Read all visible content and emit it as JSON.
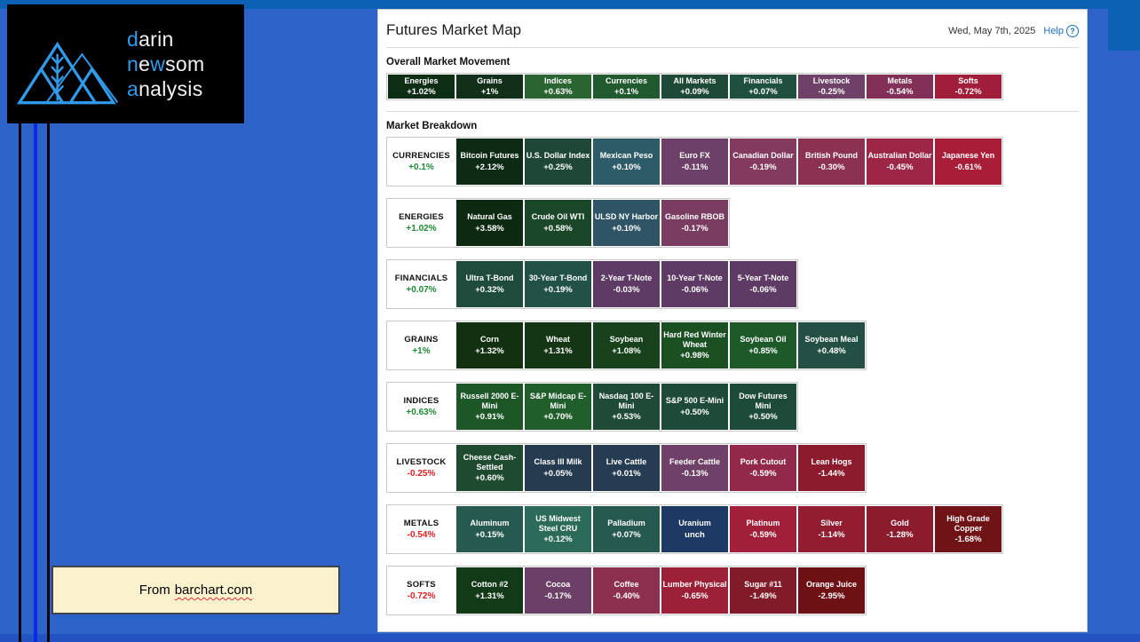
{
  "colors": {
    "background": "#2e63ca",
    "window_edge": "#0d61b4",
    "logo_accent_blue": "#2f9bea",
    "annotation_blue": "#0b2beb",
    "positive_green": "#1d8a34",
    "negative_red": "#e01f1f",
    "help_link_blue": "#1b6ec2",
    "attribution_bg": "#fcf1cd"
  },
  "logo": {
    "lines": [
      [
        {
          "text": "d",
          "blue": true
        },
        {
          "text": "arin",
          "blue": false
        }
      ],
      [
        {
          "text": "n",
          "blue": true
        },
        {
          "text": "e",
          "blue": false
        },
        {
          "text": "w",
          "blue": true
        },
        {
          "text": "som",
          "blue": false
        }
      ],
      [
        {
          "text": "a",
          "blue": true
        },
        {
          "text": "nalysis",
          "blue": false
        }
      ]
    ]
  },
  "attribution": {
    "prefix": "From",
    "link": "barchart.com"
  },
  "panel": {
    "title": "Futures Market Map",
    "date": "Wed, May 7th, 2025",
    "help_label": "Help",
    "help_icon_glyph": "?",
    "overall": {
      "heading": "Overall Market Movement",
      "tiles": [
        {
          "name": "Energies",
          "value": "+1.02%",
          "color": "#0d2d15"
        },
        {
          "name": "Grains",
          "value": "+1%",
          "color": "#122f1a"
        },
        {
          "name": "Indices",
          "value": "+0.63%",
          "color": "#2a6430"
        },
        {
          "name": "Currencies",
          "value": "+0.1%",
          "color": "#215a2e"
        },
        {
          "name": "All Markets",
          "value": "+0.09%",
          "color": "#1e4936"
        },
        {
          "name": "Financials",
          "value": "+0.07%",
          "color": "#1f4f3e"
        },
        {
          "name": "Livestock",
          "value": "-0.25%",
          "color": "#6f4169"
        },
        {
          "name": "Metals",
          "value": "-0.54%",
          "color": "#823057"
        },
        {
          "name": "Softs",
          "value": "-0.72%",
          "color": "#a01e39"
        }
      ]
    },
    "breakdown": {
      "heading": "Market Breakdown",
      "rows": [
        {
          "label": "CURRENCIES",
          "value": "+0.1%",
          "direction": "up",
          "tiles": [
            {
              "name": "Bitcoin Futures",
              "value": "+2.12%",
              "color": "#0d2b14"
            },
            {
              "name": "U.S. Dollar Index",
              "value": "+0.25%",
              "color": "#1e4738"
            },
            {
              "name": "Mexican Peso",
              "value": "+0.10%",
              "color": "#2e5b68"
            },
            {
              "name": "Euro FX",
              "value": "-0.11%",
              "color": "#6d4068"
            },
            {
              "name": "Canadian Dollar",
              "value": "-0.19%",
              "color": "#843a5e"
            },
            {
              "name": "British Pound",
              "value": "-0.30%",
              "color": "#8d3153"
            },
            {
              "name": "Australian Dollar",
              "value": "-0.45%",
              "color": "#9d2646"
            },
            {
              "name": "Japanese Yen",
              "value": "-0.61%",
              "color": "#a81e38"
            }
          ]
        },
        {
          "label": "ENERGIES",
          "value": "+1.02%",
          "direction": "up",
          "tiles": [
            {
              "name": "Natural Gas",
              "value": "+3.58%",
              "color": "#0c2912"
            },
            {
              "name": "Crude Oil WTI",
              "value": "+0.58%",
              "color": "#1a4727"
            },
            {
              "name": "ULSD NY Harbor",
              "value": "+0.10%",
              "color": "#2e5465"
            },
            {
              "name": "Gasoline RBOB",
              "value": "-0.17%",
              "color": "#7a3c60"
            }
          ]
        },
        {
          "label": "FINANCIALS",
          "value": "+0.07%",
          "direction": "up",
          "tiles": [
            {
              "name": "Ultra T-Bond",
              "value": "+0.32%",
              "color": "#1e4b3c"
            },
            {
              "name": "30-Year T-Bond",
              "value": "+0.19%",
              "color": "#225148"
            },
            {
              "name": "2-Year T-Note",
              "value": "-0.03%",
              "color": "#5e3b64"
            },
            {
              "name": "10-Year T-Note",
              "value": "-0.06%",
              "color": "#5e3b64"
            },
            {
              "name": "5-Year T-Note",
              "value": "-0.06%",
              "color": "#5e3b64"
            }
          ]
        },
        {
          "label": "GRAINS",
          "value": "+1%",
          "direction": "up",
          "tiles": [
            {
              "name": "Corn",
              "value": "+1.32%",
              "color": "#113110"
            },
            {
              "name": "Wheat",
              "value": "+1.31%",
              "color": "#143614"
            },
            {
              "name": "Soybean",
              "value": "+1.08%",
              "color": "#17421c"
            },
            {
              "name": "Hard Red Winter Wheat",
              "value": "+0.98%",
              "color": "#1b5122"
            },
            {
              "name": "Soybean Oil",
              "value": "+0.85%",
              "color": "#1e5a29"
            },
            {
              "name": "Soybean Meal",
              "value": "+0.48%",
              "color": "#234f44"
            }
          ]
        },
        {
          "label": "INDICES",
          "value": "+0.63%",
          "direction": "up",
          "tiles": [
            {
              "name": "Russell 2000 E-Mini",
              "value": "+0.91%",
              "color": "#1d5627"
            },
            {
              "name": "S&P Midcap E-Mini",
              "value": "+0.70%",
              "color": "#205e2c"
            },
            {
              "name": "Nasdaq 100 E-Mini",
              "value": "+0.53%",
              "color": "#1e4a37"
            },
            {
              "name": "S&P 500 E-Mini",
              "value": "+0.50%",
              "color": "#1e4a39"
            },
            {
              "name": "Dow Futures Mini",
              "value": "+0.50%",
              "color": "#1e4a39"
            }
          ]
        },
        {
          "label": "LIVESTOCK",
          "value": "-0.25%",
          "direction": "down",
          "tiles": [
            {
              "name": "Cheese Cash-Settled",
              "value": "+0.60%",
              "color": "#1e4a2f"
            },
            {
              "name": "Class III Milk",
              "value": "+0.05%",
              "color": "#253b50"
            },
            {
              "name": "Live Cattle",
              "value": "+0.01%",
              "color": "#263c52"
            },
            {
              "name": "Feeder Cattle",
              "value": "-0.13%",
              "color": "#6f4169"
            },
            {
              "name": "Pork Cutout",
              "value": "-0.59%",
              "color": "#92294b"
            },
            {
              "name": "Lean Hogs",
              "value": "-1.44%",
              "color": "#8c1b2e"
            }
          ]
        },
        {
          "label": "METALS",
          "value": "-0.54%",
          "direction": "down",
          "tiles": [
            {
              "name": "Aluminum",
              "value": "+0.15%",
              "color": "#265a50"
            },
            {
              "name": "US Midwest Steel CRU",
              "value": "+0.12%",
              "color": "#2c6a5a"
            },
            {
              "name": "Palladium",
              "value": "+0.07%",
              "color": "#265a50"
            },
            {
              "name": "Uranium",
              "value": "unch",
              "color": "#1c3a64"
            },
            {
              "name": "Platinum",
              "value": "-0.59%",
              "color": "#a21f39"
            },
            {
              "name": "Silver",
              "value": "-1.14%",
              "color": "#921d31"
            },
            {
              "name": "Gold",
              "value": "-1.28%",
              "color": "#8c1b2d"
            },
            {
              "name": "High Grade Copper",
              "value": "-1.68%",
              "color": "#701317"
            }
          ]
        },
        {
          "label": "SOFTS",
          "value": "-0.72%",
          "direction": "down",
          "tiles": [
            {
              "name": "Cotton #2",
              "value": "+1.31%",
              "color": "#133a17"
            },
            {
              "name": "Cocoa",
              "value": "-0.17%",
              "color": "#6c3f66"
            },
            {
              "name": "Coffee",
              "value": "-0.40%",
              "color": "#8d2f4e"
            },
            {
              "name": "Lumber Physical",
              "value": "-0.65%",
              "color": "#9d2039"
            },
            {
              "name": "Sugar #11",
              "value": "-1.49%",
              "color": "#811a29"
            },
            {
              "name": "Orange Juice",
              "value": "-2.95%",
              "color": "#6d1115"
            }
          ]
        }
      ]
    }
  }
}
